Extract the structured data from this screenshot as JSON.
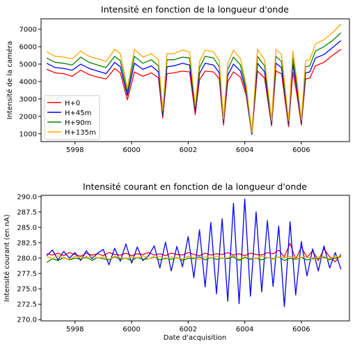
{
  "chart_data": [
    {
      "type": "line",
      "title": "Intensité en fonction de la longueur d'onde",
      "xlabel": "",
      "ylabel": "Intensité de la caméra",
      "xlim": [
        5996.8,
        6007.7
      ],
      "ylim": [
        550,
        7600
      ],
      "xticks": [
        5998,
        6000,
        6002,
        6004,
        6006
      ],
      "xtick_labels": [
        "5998",
        "6000",
        "6002",
        "6004",
        "6006"
      ],
      "yticks": [
        1000,
        2000,
        3000,
        4000,
        5000,
        6000,
        7000
      ],
      "ytick_labels": [
        "1000",
        "2000",
        "3000",
        "4000",
        "5000",
        "6000",
        "7000"
      ],
      "legend": "lower-left",
      "x_base": [
        5997.0,
        5997.3,
        5997.6,
        5997.9,
        5998.2,
        5998.5,
        5998.8,
        5999.1,
        5999.4,
        5999.6,
        5999.85,
        6000.1,
        6000.4,
        6000.7,
        6000.95,
        6001.1,
        6001.25,
        6001.5,
        6001.8,
        6002.05,
        6002.25,
        6002.4,
        6002.6,
        6002.9,
        6003.1,
        6003.25,
        6003.4,
        6003.6,
        6003.85,
        6004.05,
        6004.25,
        6004.45,
        6004.7,
        6004.95,
        6005.1,
        6005.3,
        6005.55,
        6005.7,
        6005.85,
        6006.0,
        6006.15,
        6006.3,
        6006.5,
        6006.8,
        6007.1,
        6007.4
      ],
      "series": [
        {
          "name": "H+0",
          "color": "#ff0000",
          "values": [
            4700,
            4500,
            4450,
            4300,
            4650,
            4400,
            4250,
            4150,
            4750,
            4500,
            2950,
            4550,
            4300,
            4500,
            4200,
            1900,
            4450,
            4500,
            4600,
            4550,
            2100,
            4100,
            4600,
            4550,
            4150,
            1500,
            4000,
            4550,
            4250,
            3200,
            950,
            4600,
            4200,
            1450,
            4600,
            4450,
            1400,
            4550,
            3200,
            1500,
            4150,
            4200,
            4900,
            5100,
            5500,
            5850
          ]
        },
        {
          "name": "H+45m",
          "color": "#0000ff",
          "values": [
            5050,
            4800,
            4750,
            4650,
            5000,
            4750,
            4600,
            4450,
            5100,
            4850,
            3200,
            5050,
            4700,
            4900,
            4550,
            2050,
            4850,
            4900,
            5050,
            4950,
            2300,
            4450,
            5050,
            4950,
            4500,
            1650,
            4350,
            5000,
            4600,
            3400,
            1000,
            5050,
            4550,
            1550,
            5050,
            4800,
            1550,
            5000,
            3500,
            1600,
            4500,
            4550,
            5350,
            5550,
            5950,
            6350
          ]
        },
        {
          "name": "H+90m",
          "color": "#008000",
          "values": [
            5350,
            5100,
            5050,
            4950,
            5400,
            5100,
            4950,
            4800,
            5450,
            5200,
            3400,
            5450,
            5050,
            5250,
            4900,
            2200,
            5250,
            5250,
            5400,
            5350,
            2450,
            4800,
            5450,
            5350,
            4850,
            1750,
            4700,
            5400,
            4950,
            3600,
            1050,
            5450,
            4900,
            1650,
            5450,
            5150,
            1650,
            5350,
            3750,
            1700,
            4850,
            4900,
            5750,
            6000,
            6350,
            6800
          ]
        },
        {
          "name": "H+135m",
          "color": "#ffa500",
          "values": [
            5700,
            5450,
            5400,
            5300,
            5750,
            5450,
            5300,
            5150,
            5850,
            5600,
            3600,
            5850,
            5400,
            5600,
            5250,
            2350,
            5600,
            5600,
            5800,
            5700,
            2600,
            5150,
            5800,
            5700,
            5200,
            1850,
            5050,
            5800,
            5300,
            3800,
            1100,
            5850,
            5250,
            1750,
            5850,
            5550,
            1750,
            5750,
            4000,
            1800,
            5200,
            5250,
            6150,
            6400,
            6800,
            7300
          ]
        }
      ]
    },
    {
      "type": "line",
      "title": "Intensité courant en fonction de la longueur d'onde",
      "xlabel": "Date d'acquisition",
      "ylabel": "Intensité courant (en nA)",
      "xlim": [
        5996.8,
        6007.7
      ],
      "ylim": [
        269.8,
        290.2
      ],
      "xticks": [
        5998,
        6000,
        6002,
        6004,
        6006
      ],
      "xtick_labels": [
        "5998",
        "6000",
        "6002",
        "6004",
        "6006"
      ],
      "yticks": [
        270.0,
        272.5,
        275.0,
        277.5,
        280.0,
        282.5,
        285.0,
        287.5,
        290.0
      ],
      "ytick_labels": [
        "270.0",
        "272.5",
        "275.0",
        "277.5",
        "280.0",
        "282.5",
        "285.0",
        "287.5",
        "290.0"
      ],
      "x_base": [
        5997.0,
        5997.2,
        5997.4,
        5997.6,
        5997.8,
        5998.0,
        5998.2,
        5998.4,
        5998.6,
        5998.8,
        5999.0,
        5999.2,
        5999.4,
        5999.6,
        5999.8,
        6000.0,
        6000.2,
        6000.4,
        6000.6,
        6000.8,
        6001.0,
        6001.2,
        6001.4,
        6001.6,
        6001.8,
        6002.0,
        6002.2,
        6002.4,
        6002.6,
        6002.8,
        6003.0,
        6003.2,
        6003.4,
        6003.6,
        6003.8,
        6004.0,
        6004.2,
        6004.4,
        6004.6,
        6004.8,
        6005.0,
        6005.2,
        6005.4,
        6005.6,
        6005.8,
        6006.0,
        6006.2,
        6006.4,
        6006.6,
        6006.8,
        6007.0,
        6007.2,
        6007.4
      ],
      "series": [
        {
          "name": "H+0",
          "color": "#ff0000",
          "values": [
            280.7,
            280.5,
            280.8,
            280.4,
            280.9,
            280.6,
            280.3,
            280.8,
            280.5,
            280.7,
            280.4,
            280.9,
            280.6,
            280.5,
            280.8,
            280.4,
            280.7,
            280.6,
            280.9,
            280.5,
            280.7,
            280.4,
            280.8,
            280.6,
            280.5,
            280.9,
            280.6,
            280.4,
            280.8,
            280.5,
            280.7,
            280.6,
            280.9,
            280.5,
            280.7,
            280.4,
            280.8,
            280.6,
            280.5,
            280.9,
            280.7,
            281.3,
            280.2,
            282.4,
            279.8,
            281.8,
            280.1,
            281.2,
            279.6,
            281.5,
            280.2,
            279.4,
            280.6
          ]
        },
        {
          "name": "H+45m",
          "color": "#0000ff",
          "values": [
            280.4,
            281.3,
            279.7,
            281.1,
            280.0,
            280.9,
            279.6,
            281.2,
            279.9,
            280.8,
            281.4,
            278.9,
            281.6,
            279.5,
            282.3,
            279.2,
            281.8,
            279.6,
            280.4,
            282.0,
            278.4,
            282.6,
            277.9,
            281.9,
            278.6,
            283.5,
            276.8,
            284.6,
            275.3,
            285.8,
            274.2,
            286.4,
            273.0,
            288.9,
            272.6,
            289.6,
            273.8,
            287.5,
            274.5,
            286.1,
            275.4,
            285.2,
            272.1,
            285.9,
            274.0,
            282.7,
            277.1,
            281.5,
            277.9,
            282.0,
            278.4,
            280.9,
            278.2
          ]
        },
        {
          "name": "H+90m",
          "color": "#008000",
          "values": [
            279.3,
            279.9,
            279.6,
            280.1,
            279.7,
            280.0,
            279.8,
            280.2,
            279.6,
            280.1,
            279.9,
            279.7,
            280.2,
            279.8,
            280.0,
            279.6,
            280.1,
            279.8,
            279.9,
            280.2,
            279.7,
            280.0,
            279.8,
            280.1,
            279.6,
            280.0,
            279.9,
            280.2,
            279.7,
            280.1,
            279.8,
            280.0,
            279.9,
            280.2,
            279.6,
            280.1,
            279.8,
            280.0,
            279.7,
            280.1,
            279.9,
            280.2,
            279.6,
            280.0,
            279.8,
            280.1,
            279.7,
            280.0,
            279.9,
            280.2,
            279.7,
            280.0,
            280.3
          ]
        },
        {
          "name": "H+135m",
          "color": "#ffa500",
          "values": [
            280.3,
            279.9,
            280.4,
            280.0,
            279.8,
            280.3,
            280.1,
            279.9,
            280.4,
            280.0,
            280.2,
            279.8,
            280.3,
            280.1,
            279.9,
            280.2,
            280.0,
            280.4,
            279.9,
            280.1,
            280.3,
            279.8,
            280.2,
            280.0,
            279.9,
            280.3,
            280.1,
            279.8,
            280.2,
            280.0,
            280.3,
            279.9,
            280.1,
            280.4,
            279.8,
            280.2,
            280.0,
            279.9,
            280.3,
            280.1,
            279.8,
            280.2,
            280.0,
            280.3,
            279.9,
            280.1,
            280.4,
            279.8,
            280.2,
            280.0,
            279.9,
            280.3,
            280.1
          ]
        }
      ]
    }
  ]
}
